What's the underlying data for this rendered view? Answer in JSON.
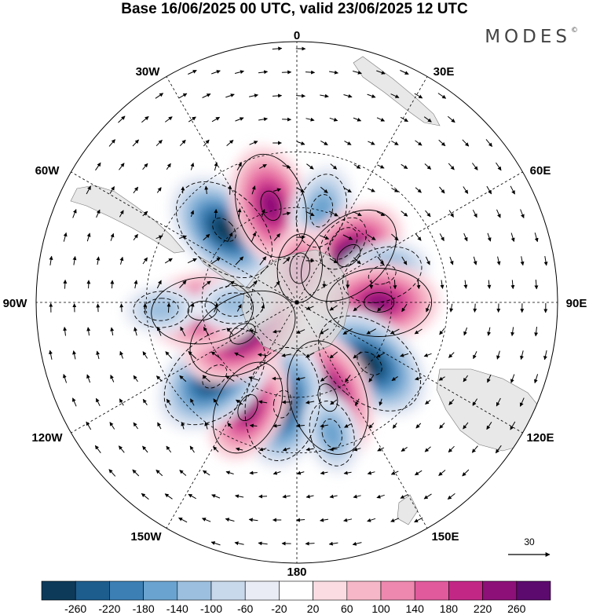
{
  "title": "Base 16/06/2025 00 UTC, valid 23/06/2025 12 UTC",
  "brand": "MODES",
  "brand_mark": "©",
  "longitude_labels": [
    "0",
    "30E",
    "60E",
    "90E",
    "120E",
    "150E",
    "180",
    "150W",
    "120W",
    "90W",
    "60W",
    "30W"
  ],
  "reference_vector": {
    "value": "30"
  },
  "colorbar": {
    "ticks": [
      "-260",
      "-220",
      "-180",
      "-140",
      "-100",
      "-60",
      "-20",
      "20",
      "60",
      "100",
      "140",
      "180",
      "220",
      "260"
    ],
    "colors": [
      "#0d3a59",
      "#1d5d8e",
      "#3b7fb5",
      "#6aa3cf",
      "#9cbfdf",
      "#c9d9ec",
      "#e9ecf5",
      "#ffffff",
      "#fbdce3",
      "#f6b7c8",
      "#ee88ae",
      "#e05a9c",
      "#c22786",
      "#8d1078",
      "#5c0a6e"
    ]
  },
  "map": {
    "projection": "south-polar-stereographic",
    "anomalies": [
      {
        "lon": -45,
        "lat": -47,
        "value": -250
      },
      {
        "lon": -15,
        "lat": -48,
        "value": 230
      },
      {
        "lon": 15,
        "lat": -50,
        "value": -150
      },
      {
        "lon": 38,
        "lat": -58,
        "value": -110
      },
      {
        "lon": 48,
        "lat": -60,
        "value": 240
      },
      {
        "lon": 72,
        "lat": -52,
        "value": -160
      },
      {
        "lon": 90,
        "lat": -55,
        "value": 230
      },
      {
        "lon": 130,
        "lat": -50,
        "value": -260
      },
      {
        "lon": 162,
        "lat": -48,
        "value": 260
      },
      {
        "lon": -172,
        "lat": -47,
        "value": -250
      },
      {
        "lon": -155,
        "lat": -42,
        "value": 200
      },
      {
        "lon": -132,
        "lat": -44,
        "value": -260
      },
      {
        "lon": -120,
        "lat": -63,
        "value": 250
      },
      {
        "lon": -95,
        "lat": -50,
        "value": 220
      },
      {
        "lon": -92,
        "lat": -63,
        "value": -110
      },
      {
        "lon": -93,
        "lat": -35,
        "value": -100
      },
      {
        "lon": 5,
        "lat": -75,
        "value": 130
      },
      {
        "lon": 165,
        "lat": -35,
        "value": -120
      }
    ]
  }
}
